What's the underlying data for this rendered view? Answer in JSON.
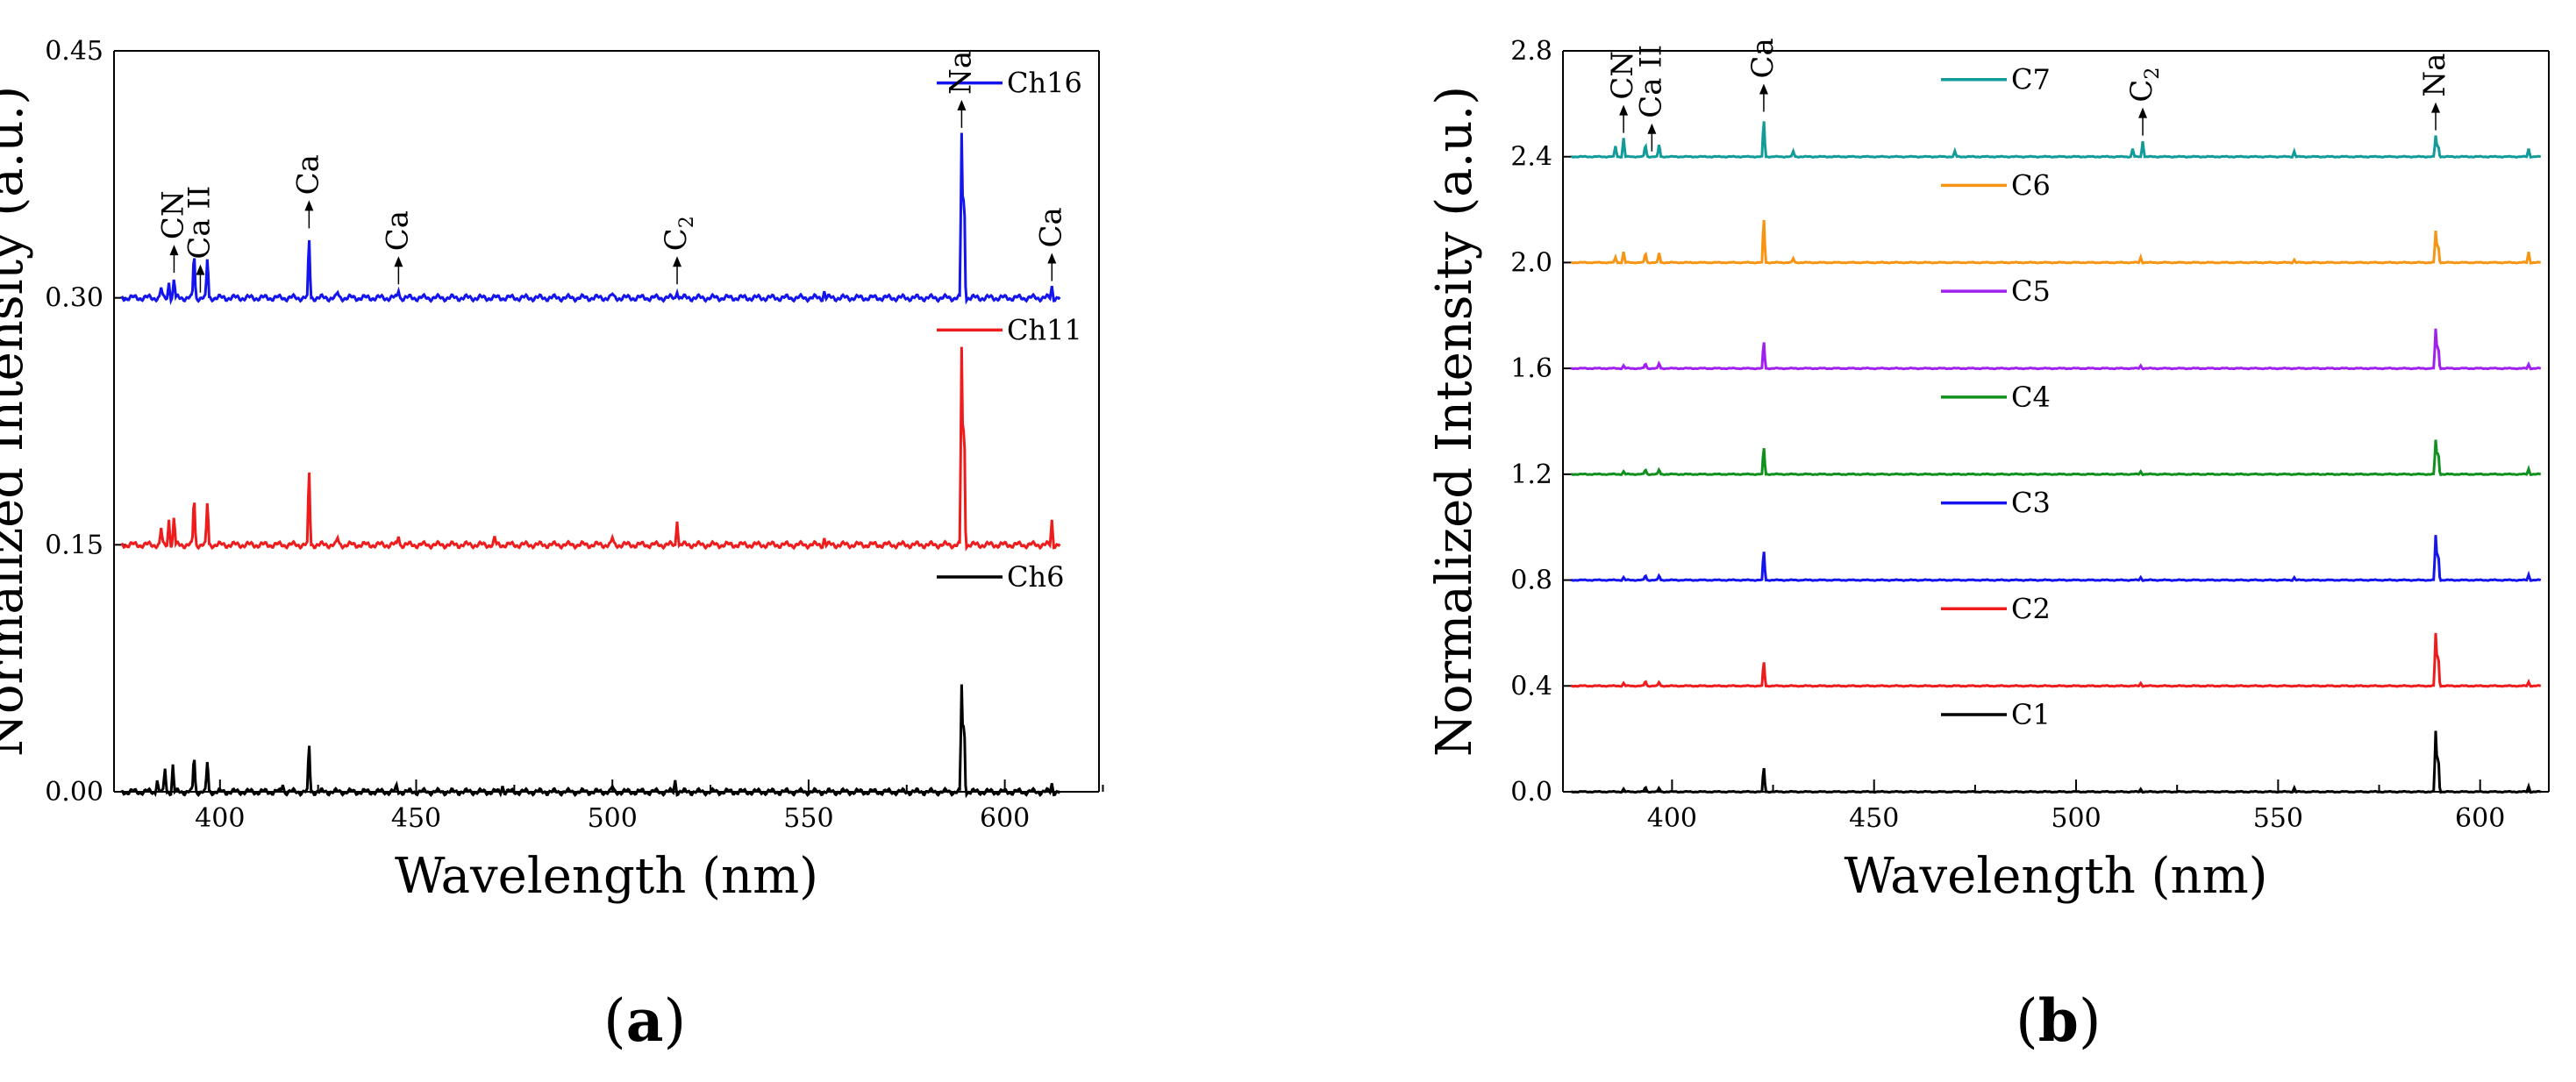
{
  "chart_data": [
    {
      "panel": "a",
      "type": "line",
      "title": "",
      "xlabel": "Wavelength (nm)",
      "ylabel": "Normalized Intensity (a.u.)",
      "xlim": [
        373,
        624
      ],
      "ylim": [
        0,
        0.45
      ],
      "xticks": [
        400,
        450,
        500,
        550,
        600
      ],
      "yticks": [
        0.0,
        0.15,
        0.3,
        0.45
      ],
      "ytick_labels": [
        "0.00",
        "0.15",
        "0.30",
        "0.45"
      ],
      "x_start": 375,
      "x_end": 614,
      "series": [
        {
          "name": "Ch6",
          "color": "#000000",
          "offset": 0.0,
          "peaks": [
            [
              384,
              0.008
            ],
            [
              386,
              0.014
            ],
            [
              388,
              0.016
            ],
            [
              393.4,
              0.025
            ],
            [
              396.8,
              0.02
            ],
            [
              416,
              0.005
            ],
            [
              422.7,
              0.031
            ],
            [
              445,
              0.003
            ],
            [
              472,
              0.004
            ],
            [
              500,
              0.003
            ],
            [
              516,
              0.007
            ],
            [
              589.0,
              0.065
            ],
            [
              589.6,
              0.05
            ],
            [
              612,
              0.005
            ]
          ]
        },
        {
          "name": "Ch11",
          "color": "#ee1c1c",
          "offset": 0.15,
          "peaks": [
            [
              385,
              0.01
            ],
            [
              387,
              0.016
            ],
            [
              388.3,
              0.018
            ],
            [
              393.4,
              0.033
            ],
            [
              396.8,
              0.028
            ],
            [
              422.7,
              0.049
            ],
            [
              430,
              0.004
            ],
            [
              445.5,
              0.006
            ],
            [
              470,
              0.004
            ],
            [
              500,
              0.004
            ],
            [
              516.5,
              0.016
            ],
            [
              554,
              0.004
            ],
            [
              589.0,
              0.12
            ],
            [
              589.6,
              0.088
            ],
            [
              612,
              0.015
            ]
          ]
        },
        {
          "name": "Ch16",
          "color": "#1414ee",
          "offset": 0.3,
          "peaks": [
            [
              385,
              0.006
            ],
            [
              387,
              0.01
            ],
            [
              388.3,
              0.012
            ],
            [
              393.4,
              0.031
            ],
            [
              396.8,
              0.026
            ],
            [
              422.7,
              0.039
            ],
            [
              430,
              0.003
            ],
            [
              445.5,
              0.005
            ],
            [
              500,
              0.002
            ],
            [
              516.5,
              0.005
            ],
            [
              554,
              0.004
            ],
            [
              589.0,
              0.1
            ],
            [
              589.6,
              0.075
            ],
            [
              612,
              0.007
            ]
          ]
        }
      ],
      "annotations": [
        {
          "text": "CN",
          "x": 388.3,
          "series": "Ch16",
          "rotated": true
        },
        {
          "text": "Ca II",
          "x": 395,
          "series": "Ch16",
          "rotated": true
        },
        {
          "text": "Ca",
          "x": 422.7,
          "series": "Ch16",
          "rotated": true
        },
        {
          "text": "Ca",
          "x": 445.5,
          "series": "Ch16",
          "rotated": true
        },
        {
          "text": "C",
          "sub": "2",
          "x": 516.5,
          "series": "Ch16",
          "rotated": true
        },
        {
          "text": "Na",
          "x": 589.0,
          "series": "Ch16",
          "rotated": true
        },
        {
          "text": "Ca",
          "x": 612,
          "series": "Ch16",
          "rotated": true
        }
      ],
      "legend_position": "above each trace, right",
      "sublabel": "a"
    },
    {
      "panel": "b",
      "type": "line",
      "title": "",
      "xlabel": "Wavelength (nm)",
      "ylabel": "Normalized Intensity (a.u.)",
      "xlim": [
        373,
        617
      ],
      "ylim": [
        0,
        2.8
      ],
      "xticks": [
        400,
        450,
        500,
        550,
        600
      ],
      "yticks": [
        0.0,
        0.4,
        0.8,
        1.2,
        1.6,
        2.0,
        2.4,
        2.8
      ],
      "ytick_labels": [
        "0.0",
        "0.4",
        "0.8",
        "1.2",
        "1.6",
        "2.0",
        "2.4",
        "2.8"
      ],
      "x_start": 375,
      "x_end": 615,
      "series": [
        {
          "name": "C1",
          "color": "#000000",
          "offset": 0.0,
          "peaks": [
            [
              388,
              0.01
            ],
            [
              393.4,
              0.02
            ],
            [
              396.8,
              0.015
            ],
            [
              422.7,
              0.1
            ],
            [
              516,
              0.01
            ],
            [
              554,
              0.015
            ],
            [
              589.0,
              0.23
            ],
            [
              589.6,
              0.16
            ],
            [
              612,
              0.02
            ]
          ]
        },
        {
          "name": "C2",
          "color": "#ee1c1c",
          "offset": 0.4,
          "peaks": [
            [
              388,
              0.01
            ],
            [
              393.4,
              0.02
            ],
            [
              396.8,
              0.015
            ],
            [
              422.7,
              0.1
            ],
            [
              516,
              0.01
            ],
            [
              589.0,
              0.2
            ],
            [
              589.6,
              0.14
            ],
            [
              612,
              0.015
            ]
          ]
        },
        {
          "name": "C3",
          "color": "#1414ee",
          "offset": 0.8,
          "peaks": [
            [
              388,
              0.01
            ],
            [
              393.4,
              0.02
            ],
            [
              396.8,
              0.018
            ],
            [
              422.7,
              0.12
            ],
            [
              516,
              0.01
            ],
            [
              554,
              0.01
            ],
            [
              589.0,
              0.17
            ],
            [
              589.6,
              0.12
            ],
            [
              612,
              0.02
            ]
          ]
        },
        {
          "name": "C4",
          "color": "#10901c",
          "offset": 1.2,
          "peaks": [
            [
              388,
              0.01
            ],
            [
              393.4,
              0.02
            ],
            [
              396.8,
              0.018
            ],
            [
              422.7,
              0.11
            ],
            [
              516,
              0.01
            ],
            [
              589.0,
              0.13
            ],
            [
              589.6,
              0.1
            ],
            [
              612,
              0.02
            ]
          ]
        },
        {
          "name": "C5",
          "color": "#a020f0",
          "offset": 1.6,
          "peaks": [
            [
              388,
              0.01
            ],
            [
              393.4,
              0.02
            ],
            [
              396.8,
              0.02
            ],
            [
              422.7,
              0.11
            ],
            [
              516,
              0.01
            ],
            [
              589.0,
              0.15
            ],
            [
              589.6,
              0.1
            ],
            [
              612,
              0.015
            ]
          ]
        },
        {
          "name": "C6",
          "color": "#f79414",
          "offset": 2.0,
          "peaks": [
            [
              386,
              0.02
            ],
            [
              388,
              0.04
            ],
            [
              393.4,
              0.04
            ],
            [
              396.8,
              0.04
            ],
            [
              422.7,
              0.18
            ],
            [
              430,
              0.015
            ],
            [
              516,
              0.02
            ],
            [
              554,
              0.01
            ],
            [
              589.0,
              0.12
            ],
            [
              589.6,
              0.08
            ],
            [
              612,
              0.04
            ]
          ]
        },
        {
          "name": "C7",
          "color": "#119b99",
          "offset": 2.4,
          "peaks": [
            [
              386,
              0.04
            ],
            [
              388,
              0.07
            ],
            [
              393.4,
              0.05
            ],
            [
              396.8,
              0.05
            ],
            [
              422.7,
              0.15
            ],
            [
              430,
              0.02
            ],
            [
              470,
              0.02
            ],
            [
              514,
              0.03
            ],
            [
              516.5,
              0.06
            ],
            [
              554,
              0.02
            ],
            [
              589.0,
              0.08
            ],
            [
              589.6,
              0.05
            ],
            [
              612,
              0.03
            ]
          ]
        }
      ],
      "annotations": [
        {
          "text": "CN",
          "x": 388,
          "series": "C7",
          "rotated": true
        },
        {
          "text": "Ca II",
          "x": 395,
          "series": "C7",
          "rotated": true
        },
        {
          "text": "Ca",
          "x": 422.7,
          "series": "C7",
          "rotated": true
        },
        {
          "text": "C",
          "sub": "2",
          "x": 516.5,
          "series": "C7",
          "rotated": true
        },
        {
          "text": "Na",
          "x": 589.0,
          "series": "C7",
          "rotated": true
        }
      ],
      "legend_position": "above each trace, left",
      "sublabel": "b"
    }
  ]
}
